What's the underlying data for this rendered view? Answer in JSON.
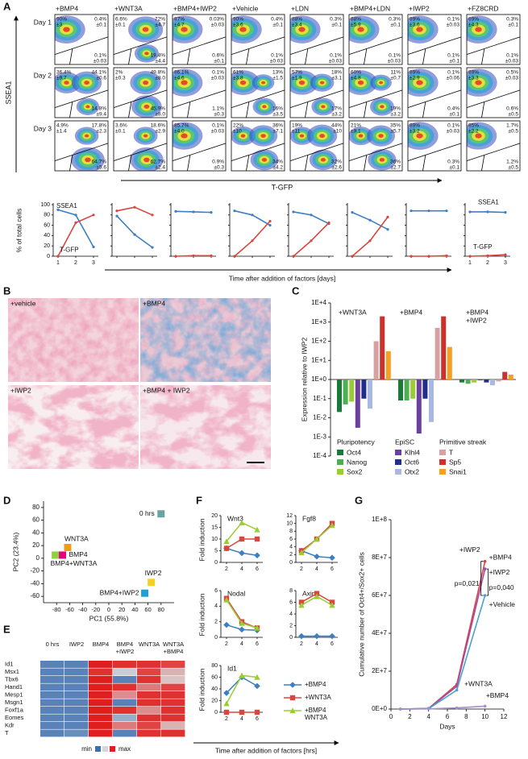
{
  "panel_labels": [
    "A",
    "B",
    "C",
    "D",
    "E",
    "F",
    "G"
  ],
  "panel_a": {
    "conditions": [
      "+BMP4",
      "+WNT3A",
      "+BMP4+IWP2",
      "+Vehicle",
      "+LDN",
      "+BMP4+LDN",
      "+IWP2",
      "+FZ8CRD"
    ],
    "y_axis_label": "SSEA1",
    "x_axis_label": "T-GFP",
    "rows": [
      {
        "day": "Day 1",
        "plots": [
          [
            [
              "90%",
              "±3"
            ],
            [
              "0.4%",
              "±0.1"
            ],
            [
              "0.1%",
              "±0.03"
            ]
          ],
          [
            [
              "6.6%",
              "±0.1"
            ],
            [
              "72%",
              "±4.7"
            ],
            [
              "19.4%",
              "±4.4"
            ]
          ],
          [
            [
              "87%",
              "±4.7"
            ],
            [
              "0.03%",
              "±0.03"
            ],
            [
              "0.6%",
              "±0.1"
            ]
          ],
          [
            [
              "90%",
              "±3.6"
            ],
            [
              "0.4%",
              "±0.1"
            ],
            [
              "0.1%",
              "±0.03"
            ]
          ],
          [
            [
              "88%",
              "±3.4"
            ],
            [
              "0.3%",
              "±0.1"
            ],
            [
              "0.1%",
              "±0.03"
            ]
          ],
          [
            [
              "88%",
              "±5.9"
            ],
            [
              "0.3%",
              "±0.1"
            ],
            [
              "0.1%",
              "±0.03"
            ]
          ],
          [
            [
              "89%",
              "±3.6"
            ],
            [
              "0.1%",
              "±0.03"
            ],
            [
              "0.1%",
              "±0.1"
            ]
          ],
          [
            [
              "89%",
              "±4.3"
            ],
            [
              "0.3%",
              "±0.1"
            ],
            [
              "0.1%",
              "±0.03"
            ]
          ]
        ]
      },
      {
        "day": "Day 2",
        "plots": [
          [
            [
              "36.4%",
              "±9.7"
            ],
            [
              "44.1%",
              "±0.6"
            ],
            [
              "14.8%",
              "±9.4"
            ]
          ],
          [
            [
              "2%",
              "±0.3"
            ],
            [
              "49.8%",
              "±8.0"
            ],
            [
              "45.9%",
              "±8.0"
            ]
          ],
          [
            [
              "86.1%",
              "±4.6"
            ],
            [
              "0.1%",
              "±0.03"
            ],
            [
              "1.1%",
              "±0.3"
            ]
          ],
          [
            [
              "61%",
              "±3.8"
            ],
            [
              "13%",
              "±1.5"
            ],
            [
              "16%",
              "±3.5"
            ]
          ],
          [
            [
              "57%",
              "±1.9"
            ],
            [
              "18%",
              "±3.1"
            ],
            [
              "17%",
              "±3.2"
            ]
          ],
          [
            [
              "60%",
              "±4.8"
            ],
            [
              "11%",
              "±0.7"
            ],
            [
              "19%",
              "±3.2"
            ]
          ],
          [
            [
              "89%",
              "±2.9"
            ],
            [
              "0.1%",
              "±0.06"
            ],
            [
              "0.4%",
              "±0.1"
            ]
          ],
          [
            [
              "89%",
              "±3.3"
            ],
            [
              "0.5%",
              "±0.03"
            ],
            [
              "0.6%",
              "±0.5"
            ]
          ]
        ]
      },
      {
        "day": "Day 3",
        "plots": [
          [
            [
              "4.9%",
              "±1.4"
            ],
            [
              "17.8%",
              "±2.3"
            ],
            [
              "64.7%",
              "±5.6"
            ]
          ],
          [
            [
              "3.6%",
              "±0.1"
            ],
            [
              "18.6%",
              "±2.9"
            ],
            [
              "62.7%",
              "±2.4"
            ]
          ],
          [
            [
              "85.7%",
              "±4.0"
            ],
            [
              "0.1%",
              "±0.03"
            ],
            [
              "0.9%",
              "±0.3"
            ]
          ],
          [
            [
              "22%",
              "±10"
            ],
            [
              "36%",
              "±7.1"
            ],
            [
              "34%",
              "±4.2"
            ]
          ],
          [
            [
              "19%",
              "±11"
            ],
            [
              "44%",
              "±10"
            ],
            [
              "32%",
              "±2.6"
            ]
          ],
          [
            [
              "21%",
              "±9.1"
            ],
            [
              "35%",
              "±5.7"
            ],
            [
              "36%",
              "±2.7"
            ]
          ],
          [
            [
              "89%",
              "±3.2"
            ],
            [
              "0.1%",
              "±0.03"
            ],
            [
              "0.3%",
              "±0.1"
            ]
          ],
          [
            [
              "85%",
              "±2.2"
            ],
            [
              "1.7%",
              "±0.5"
            ],
            [
              "1.2%",
              "±0.5"
            ]
          ]
        ]
      }
    ],
    "kinetics": {
      "type": "line",
      "y_label": "% of total cells",
      "x_label": "Time after addition of factors [days]",
      "x": [
        1,
        2,
        3
      ],
      "ylim": [
        0,
        100
      ],
      "yticks": [
        0,
        20,
        40,
        60,
        80,
        100
      ],
      "series": [
        {
          "name": "SSEA1",
          "color": "#3d7fc4"
        },
        {
          "name": "T-GFP",
          "color": "#d9463e"
        }
      ],
      "charts": [
        {
          "values": [
            [
              90,
              80,
              18
            ],
            [
              0,
              65,
              80
            ]
          ]
        },
        {
          "values": [
            [
              78,
              42,
              17
            ],
            [
              88,
              95,
              80
            ]
          ]
        },
        {
          "values": [
            [
              87,
              86,
              85
            ],
            [
              0,
              1,
              1
            ]
          ]
        },
        {
          "values": [
            [
              88,
              80,
              60
            ],
            [
              0,
              30,
              68
            ]
          ]
        },
        {
          "values": [
            [
              86,
              80,
              63
            ],
            [
              0,
              30,
              65
            ]
          ]
        },
        {
          "values": [
            [
              85,
              70,
              52
            ],
            [
              0,
              30,
              76
            ]
          ]
        },
        {
          "values": [
            [
              88,
              88,
              88
            ],
            [
              0,
              0,
              1
            ]
          ]
        },
        {
          "values": [
            [
              86,
              86,
              85
            ],
            [
              0,
              1,
              3
            ]
          ]
        }
      ]
    }
  },
  "panel_b": {
    "images": [
      {
        "label": "+vehicle"
      },
      {
        "label": "+BMP4"
      },
      {
        "label": "+IWP2"
      },
      {
        "label": "+BMP4 + IWP2"
      }
    ]
  },
  "panel_c": {
    "type": "bar",
    "y_label": "Expression relative to IWP2",
    "log": true,
    "ylim": [
      0.0001,
      10000
    ],
    "yticks": [
      {
        "value": 10000,
        "label": "1E+4"
      },
      {
        "value": 1000,
        "label": "1E+3"
      },
      {
        "value": 100,
        "label": "1E+2"
      },
      {
        "value": 10,
        "label": "1E+1"
      },
      {
        "value": 1,
        "label": "1E+0"
      },
      {
        "value": 0.1,
        "label": "1E-1"
      },
      {
        "value": 0.01,
        "label": "1E-2"
      },
      {
        "value": 0.001,
        "label": "1E-3"
      },
      {
        "value": 0.0001,
        "label": "1E-4"
      }
    ],
    "gene_groups": [
      {
        "title": "Pluripotency",
        "genes": [
          {
            "name": "Oct4",
            "color": "#1b7a3a"
          },
          {
            "name": "Nanog",
            "color": "#4caf50"
          },
          {
            "name": "Sox2",
            "color": "#9acd32"
          }
        ]
      },
      {
        "title": "EpiSC",
        "genes": [
          {
            "name": "Klhl4",
            "color": "#6b3fa0"
          },
          {
            "name": "Oct6",
            "color": "#1f2f8a"
          },
          {
            "name": "Otx2",
            "color": "#a9b8e0"
          }
        ]
      },
      {
        "title": "Primitive streak",
        "genes": [
          {
            "name": "T",
            "color": "#d9a0a0"
          },
          {
            "name": "Sp5",
            "color": "#d0302a"
          },
          {
            "name": "Snai1",
            "color": "#f5a020"
          }
        ]
      }
    ],
    "groups": [
      {
        "name": [
          "+WNT3A"
        ],
        "values": [
          0.02,
          0.05,
          0.07,
          0.003,
          0.1,
          0.03,
          100,
          2000,
          30
        ]
      },
      {
        "name": [
          "+BMP4"
        ],
        "values": [
          0.08,
          0.08,
          0.1,
          0.0015,
          0.1,
          0.006,
          500,
          2000,
          50
        ]
      },
      {
        "name": [
          "+BMP4",
          "+IWP2"
        ],
        "values": [
          0.7,
          0.6,
          0.7,
          0.9,
          0.7,
          0.5,
          0.8,
          2.5,
          1.8
        ]
      }
    ]
  },
  "panel_d": {
    "type": "scatter",
    "x_label": "PC1 (55.8%)",
    "y_label": "PC2 (23.4%)",
    "xlim": [
      -100,
      100
    ],
    "ylim": [
      -70,
      90
    ],
    "xticks": [
      -80,
      -60,
      -40,
      -20,
      0,
      20,
      40,
      60,
      80
    ],
    "yticks": [
      -60,
      -40,
      -20,
      0,
      20,
      40,
      60,
      80
    ],
    "points": [
      {
        "label": "0 hrs",
        "x": 80,
        "y": 70,
        "color": "#6aa3a6"
      },
      {
        "label": "WNT3A",
        "x": -63,
        "y": 17,
        "color": "#f39c12"
      },
      {
        "label": "BMP4",
        "x": -71,
        "y": 5,
        "color": "#e6007e"
      },
      {
        "label": "BMP4+WNT3A",
        "x": -82,
        "y": 5,
        "color": "#8fd13f"
      },
      {
        "label": "IWP2",
        "x": 65,
        "y": -38,
        "color": "#f5d020"
      },
      {
        "label": "BMP4+IWP2",
        "x": 55,
        "y": -55,
        "color": "#1f9fd8"
      }
    ]
  },
  "panel_e": {
    "type": "heatmap",
    "columns": [
      [
        "0 hrs"
      ],
      [
        "IWP2"
      ],
      [
        "BMP4"
      ],
      [
        "BMP4",
        "+IWP2"
      ],
      [
        "WNT3A"
      ],
      [
        "WNT3A",
        "+BMP4"
      ]
    ],
    "rows": [
      "Id1",
      "Msx1",
      "Tbx6",
      "Hand1",
      "Mesp1",
      "Msgn1",
      "Foxf1a",
      "Eomes",
      "Kdr",
      "T"
    ],
    "values": [
      [
        0.1,
        0.1,
        1,
        0.95,
        0.95,
        0.9
      ],
      [
        0.1,
        0.1,
        0.95,
        0.45,
        0.9,
        0.6
      ],
      [
        0.1,
        0.1,
        1,
        0.1,
        0.95,
        0.55
      ],
      [
        0.1,
        0.1,
        1,
        0.95,
        0.75,
        0.9
      ],
      [
        0.1,
        0.1,
        1,
        0.7,
        0.95,
        0.95
      ],
      [
        0.1,
        0.1,
        1,
        0.1,
        0.95,
        0.95
      ],
      [
        0.1,
        0.1,
        1,
        0.95,
        0.7,
        0.95
      ],
      [
        0.1,
        0.1,
        1,
        0.3,
        0.95,
        0.95
      ],
      [
        0.1,
        0.1,
        1,
        0.75,
        0.9,
        0.6
      ],
      [
        0.1,
        0.15,
        1,
        0.1,
        0.95,
        0.95
      ]
    ],
    "legend": {
      "min": "min",
      "max": "max"
    }
  },
  "panel_f": {
    "type": "line",
    "y_label": "Fold induction",
    "x_label": "Time after addition of factors [hrs]",
    "x": [
      2,
      4,
      6
    ],
    "series": [
      {
        "name": [
          "+BMP4"
        ],
        "color": "#3d7fc4",
        "marker": "diamond"
      },
      {
        "name": [
          "+WNT3A"
        ],
        "color": "#d9463e",
        "marker": "square"
      },
      {
        "name": [
          "+BMP4",
          "WNT3A"
        ],
        "color": "#9acd32",
        "marker": "triangle"
      }
    ],
    "charts": [
      {
        "title": "Wnt3",
        "ylim": [
          0,
          20
        ],
        "yticks": [
          0,
          5,
          10,
          15,
          20
        ],
        "values": [
          [
            6,
            4,
            3
          ],
          [
            6,
            10,
            10
          ],
          [
            9,
            17,
            14
          ]
        ]
      },
      {
        "title": "Fgf8",
        "ylim": [
          0,
          12
        ],
        "yticks": [
          0,
          2,
          4,
          6,
          8,
          10,
          12
        ],
        "values": [
          [
            3,
            1.5,
            1.2
          ],
          [
            3,
            6,
            10
          ],
          [
            2.5,
            6,
            9.5
          ]
        ]
      },
      {
        "title": "Nodal",
        "ylim": [
          0,
          6
        ],
        "yticks": [
          0,
          2,
          4,
          6
        ],
        "values": [
          [
            1.6,
            1,
            0.9
          ],
          [
            5,
            2,
            1.2
          ],
          [
            4.8,
            1.8,
            1.2
          ]
        ]
      },
      {
        "title": "Axin2",
        "ylim": [
          0,
          8
        ],
        "yticks": [
          0,
          2,
          4,
          6,
          8
        ],
        "values": [
          [
            0.2,
            0.2,
            0.2
          ],
          [
            6,
            7.5,
            6
          ],
          [
            5.5,
            7,
            5.5
          ]
        ]
      },
      {
        "title": "Id1",
        "ylim": [
          0,
          80
        ],
        "yticks": [
          0,
          20,
          40,
          60,
          80
        ],
        "values": [
          [
            33,
            60,
            45
          ],
          [
            0,
            0,
            0
          ],
          [
            15,
            63,
            60
          ]
        ]
      }
    ]
  },
  "panel_g": {
    "type": "line",
    "y_label": "Cumulative number of Oct4+/Sox2+ cells",
    "x_label": "Days",
    "x": [
      1,
      4,
      7,
      10
    ],
    "xlim": [
      0,
      12
    ],
    "xticks": [
      0,
      2,
      4,
      6,
      8,
      10,
      12
    ],
    "ylim": [
      0,
      100000000
    ],
    "yticks": [
      {
        "value": 0,
        "label": "0E+0"
      },
      {
        "value": 20000000,
        "label": "2E+7"
      },
      {
        "value": 40000000,
        "label": "4E+7"
      },
      {
        "value": 60000000,
        "label": "6E+7"
      },
      {
        "value": 80000000,
        "label": "8E+7"
      },
      {
        "value": 100000000,
        "label": "1E+8"
      }
    ],
    "series": [
      {
        "name": "+IWP2",
        "color": "#d9463e",
        "values": [
          0,
          300000,
          13000000,
          78000000
        ]
      },
      {
        "name": "+BMP4",
        "color": "#a24ab0",
        "values": [
          0,
          300000,
          12000000,
          74000000
        ]
      },
      {
        "name": "+Vehicle",
        "color": "#4aa3c8",
        "values": [
          0,
          200000,
          10000000,
          60000000
        ]
      },
      {
        "name": "+WNT3A",
        "color": "#a58fd0",
        "values": [
          0,
          100000,
          600000,
          1500000
        ]
      }
    ],
    "annotations": [
      "+IWP2",
      "p=0,021",
      "p=0,040",
      "+BMP4"
    ]
  }
}
